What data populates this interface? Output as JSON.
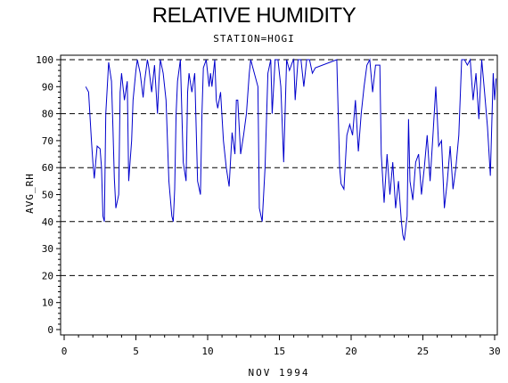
{
  "chart_data": {
    "type": "line",
    "title": "RELATIVE HUMIDITY",
    "subtitle": "STATION=HOGI",
    "xlabel": "NOV 1994",
    "ylabel": "AVG_RH",
    "xlim": [
      0,
      30
    ],
    "ylim": [
      0,
      100
    ],
    "x_ticks": [
      0,
      5,
      10,
      15,
      20,
      25,
      30
    ],
    "y_ticks": [
      0,
      10,
      20,
      30,
      40,
      50,
      60,
      70,
      80,
      90,
      100
    ],
    "gridlines_y": [
      20,
      40,
      60,
      80,
      100
    ],
    "line_color": "#0000cc",
    "series": [
      {
        "x": [
          1.5,
          1.7,
          1.9,
          2.0,
          2.1,
          2.3,
          2.5,
          2.6,
          2.7,
          2.8,
          2.9,
          3.1,
          3.3,
          3.4,
          3.5,
          3.6,
          3.8,
          3.9,
          4.0,
          4.1,
          4.2,
          4.4,
          4.5,
          4.7,
          4.8,
          5.0,
          5.1,
          5.3,
          5.5,
          5.6,
          5.8,
          5.9,
          6.1,
          6.3,
          6.5,
          6.6,
          6.7,
          6.9,
          7.1,
          7.3,
          7.5,
          7.6,
          7.7,
          7.8,
          7.9,
          8.1,
          8.3,
          8.5,
          8.6,
          8.7,
          8.9,
          9.1,
          9.3,
          9.5,
          9.6,
          9.7,
          9.9,
          10.1,
          10.2,
          10.3,
          10.5,
          10.6,
          10.7,
          10.9,
          11.1,
          11.3,
          11.5,
          11.7,
          11.9,
          12.0,
          12.1,
          12.3,
          12.5,
          12.7,
          12.9,
          13.0,
          13.5,
          13.6,
          13.8,
          14.0,
          14.2,
          14.4,
          14.5,
          14.7,
          14.9,
          15.1,
          15.3,
          15.5,
          15.6,
          15.7,
          15.9,
          16.0,
          16.1,
          16.3,
          16.5,
          16.7,
          16.9,
          17.1,
          17.3,
          17.5,
          19.0,
          19.2,
          19.3,
          19.5,
          19.7,
          19.9,
          20.1,
          20.3,
          20.5,
          20.7,
          20.9,
          21.1,
          21.3,
          21.5,
          21.7,
          21.9,
          22.0,
          22.1,
          22.3,
          22.5,
          22.7,
          22.9,
          23.1,
          23.3,
          23.5,
          23.6,
          23.7,
          23.9,
          24.0,
          24.1,
          24.3,
          24.5,
          24.7,
          24.9,
          25.1,
          25.3,
          25.5,
          25.7,
          25.9,
          26.1,
          26.3,
          26.5,
          26.7,
          26.9,
          27.1,
          27.3,
          27.5,
          27.7,
          27.9,
          28.1,
          28.3,
          28.5,
          28.7,
          28.9,
          29.1,
          29.3,
          29.5,
          29.7,
          29.9,
          30.0,
          30.1
        ],
        "y": [
          90,
          88,
          70,
          62,
          56,
          68,
          67,
          60,
          42,
          40,
          80,
          99,
          92,
          75,
          56,
          45,
          50,
          88,
          95,
          90,
          85,
          92,
          55,
          70,
          85,
          96,
          100,
          95,
          86,
          92,
          100,
          97,
          88,
          98,
          80,
          92,
          100,
          95,
          85,
          55,
          42,
          40,
          52,
          80,
          92,
          100,
          62,
          55,
          88,
          95,
          88,
          95,
          55,
          50,
          80,
          97,
          100,
          90,
          95,
          90,
          100,
          85,
          82,
          88,
          70,
          60,
          53,
          73,
          65,
          85,
          85,
          65,
          72,
          80,
          95,
          100,
          90,
          45,
          40,
          60,
          95,
          100,
          80,
          100,
          100,
          90,
          62,
          100,
          98,
          96,
          99,
          100,
          85,
          100,
          100,
          90,
          100,
          100,
          95,
          97,
          100,
          60,
          54,
          52,
          72,
          76,
          72,
          85,
          66,
          80,
          90,
          98,
          100,
          88,
          98,
          98,
          98,
          65,
          47,
          65,
          50,
          62,
          45,
          55,
          40,
          35,
          33,
          42,
          78,
          55,
          48,
          62,
          65,
          50,
          60,
          72,
          55,
          72,
          90,
          68,
          70,
          45,
          55,
          68,
          52,
          60,
          72,
          100,
          100,
          98,
          100,
          85,
          95,
          78,
          100,
          88,
          75,
          57,
          95,
          85,
          93
        ]
      }
    ]
  }
}
